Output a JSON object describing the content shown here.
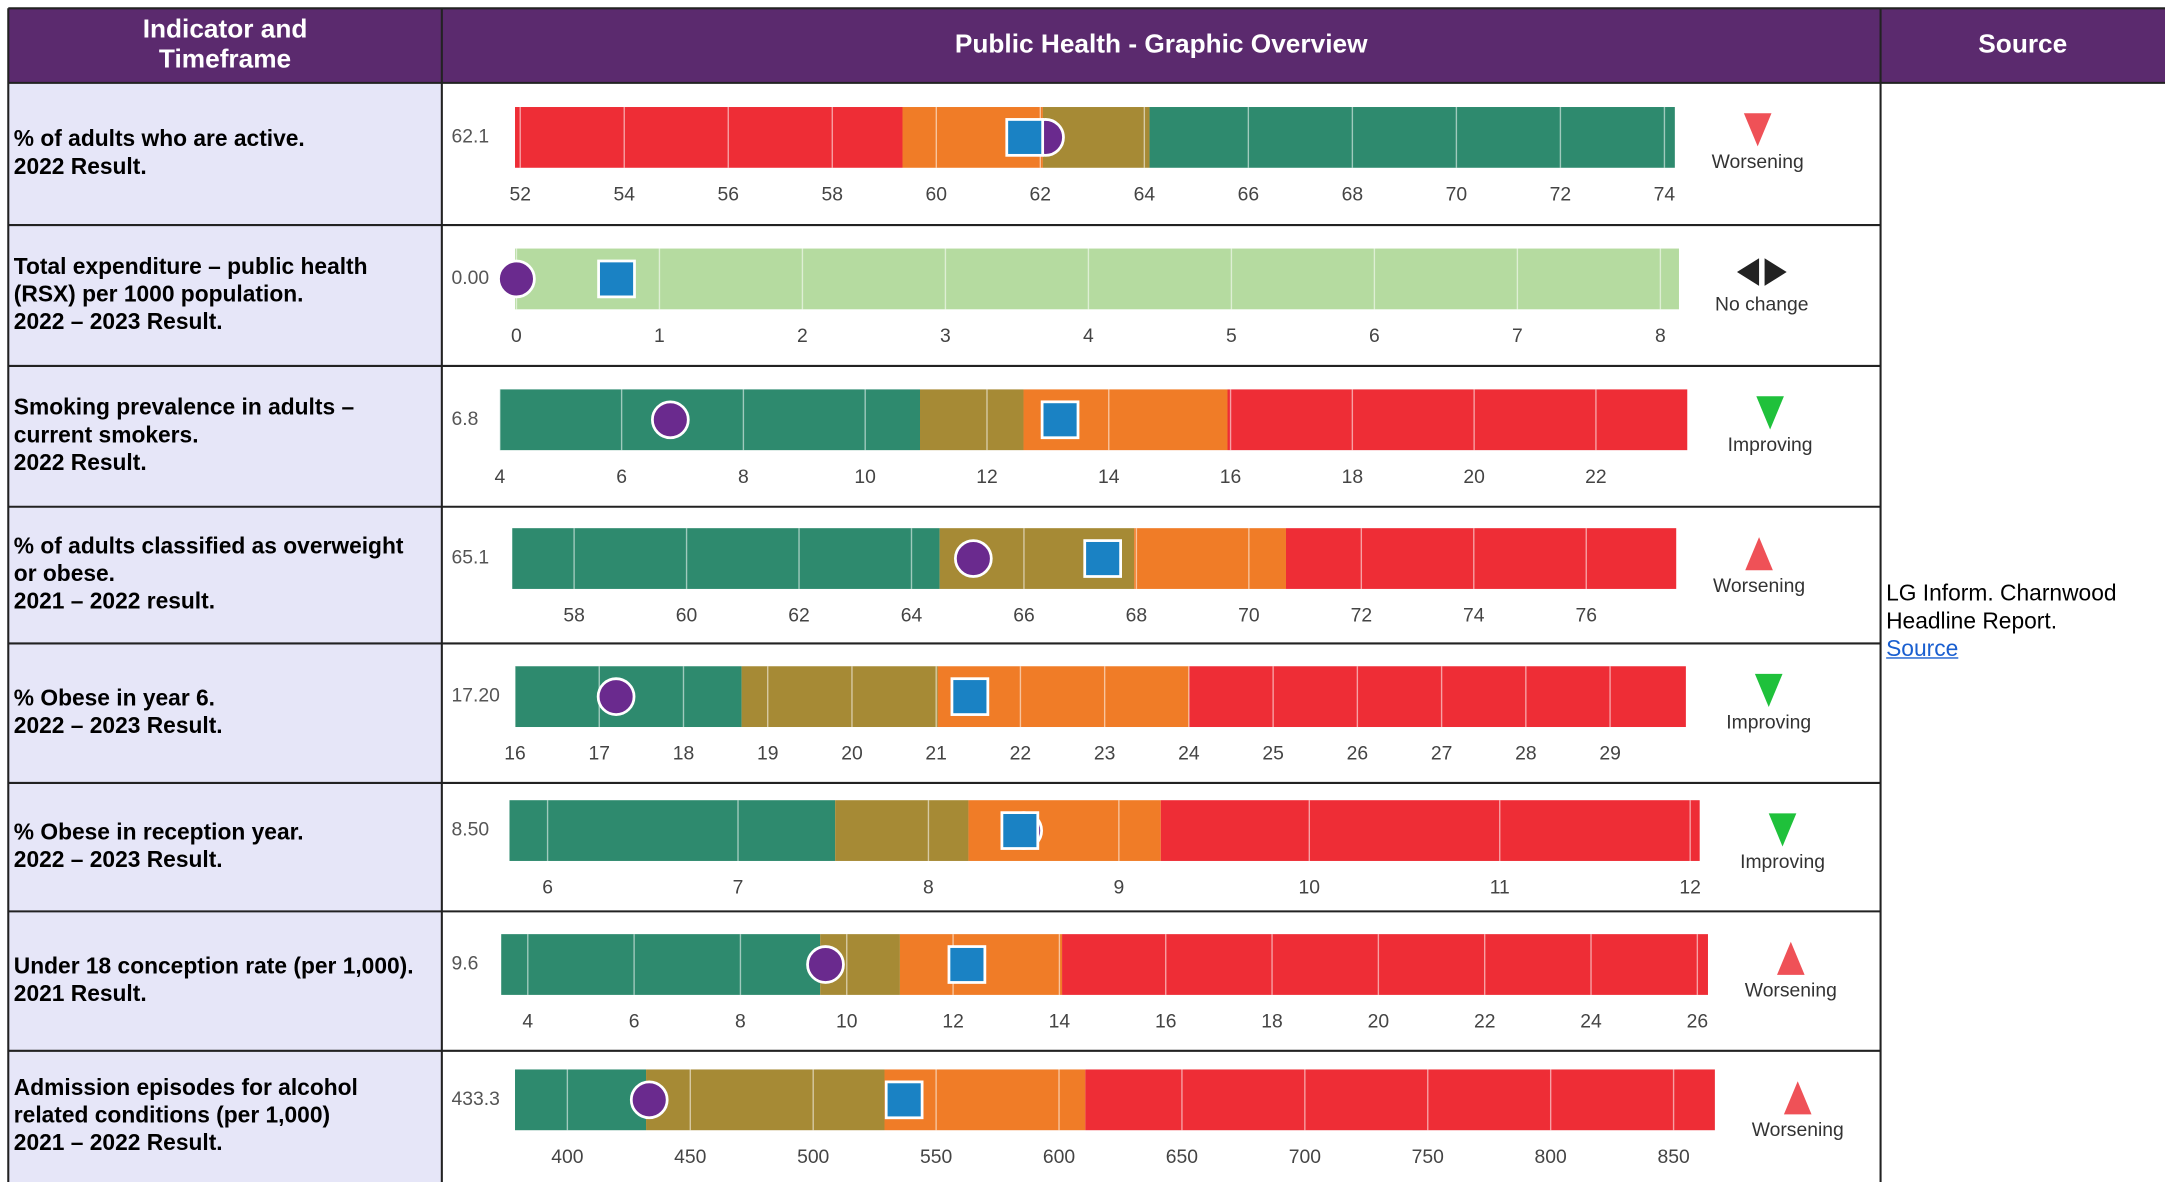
{
  "header": {
    "indicator": "Indicator and Timeframe",
    "overview": "Public Health - Graphic Overview",
    "source": "Source"
  },
  "source": {
    "text": "LG Inform. Charnwood Headline Report.",
    "link": "Source"
  },
  "rows": [
    {
      "name_lines": [
        "% of adults who are active."
      ],
      "timeframe": "2022 Result.",
      "value": 62.1,
      "value_label": "62.1",
      "comparator": 61.7,
      "xlim": [
        51.9,
        74.2
      ],
      "xticks": [
        52,
        54,
        56,
        58,
        60,
        62,
        64,
        66,
        68,
        70,
        72,
        74
      ],
      "band_edges": [
        51.9,
        59.35,
        62.05,
        64.1,
        74.2
      ],
      "band_colors": [
        "#ee2d36",
        "#f07c27",
        "#a68a35",
        "#2e8a6e"
      ],
      "trend": "Worsening",
      "trend_direction": "down",
      "trend_color": "#ef5157"
    },
    {
      "name_lines": [
        "Total expenditure – public health",
        "(RSX) per 1000 population."
      ],
      "timeframe": "2022 – 2023 Result.",
      "value": 0,
      "value_label": "0.00",
      "comparator": 0.7,
      "xlim": [
        -0.01,
        8.13
      ],
      "xticks": [
        0,
        1,
        2,
        3,
        4,
        5,
        6,
        7,
        8
      ],
      "band_edges": [
        -0.01,
        8.13
      ],
      "band_colors": [
        "#b5dba0"
      ],
      "trend": "No change",
      "trend_direction": "none",
      "trend_color": "#222222"
    },
    {
      "name_lines": [
        "Smoking prevalence in adults –",
        "current smokers."
      ],
      "timeframe": "2022 Result.",
      "value": 6.8,
      "value_label": "6.8",
      "comparator": 13.2,
      "xlim": [
        4,
        23.5
      ],
      "xticks": [
        4,
        6,
        8,
        10,
        12,
        14,
        16,
        18,
        20,
        22
      ],
      "band_edges": [
        4,
        10.9,
        12.6,
        15.95,
        23.5
      ],
      "band_colors": [
        "#2e8a6e",
        "#a68a35",
        "#f07c27",
        "#ee2d36"
      ],
      "trend": "Improving",
      "trend_direction": "down",
      "trend_color": "#1fc13b"
    },
    {
      "name_lines": [
        "% of adults classified as overweight",
        "or obese."
      ],
      "timeframe": "2021 – 2022 result.",
      "value": 65.1,
      "value_label": "65.1",
      "comparator": 67.4,
      "xlim": [
        56.9,
        77.6
      ],
      "xticks": [
        58,
        60,
        62,
        64,
        66,
        68,
        70,
        72,
        74,
        76
      ],
      "band_edges": [
        56.9,
        64.5,
        67.96,
        70.66,
        77.6
      ],
      "band_colors": [
        "#2e8a6e",
        "#a68a35",
        "#f07c27",
        "#ee2d36"
      ],
      "trend": "Worsening",
      "trend_direction": "up",
      "trend_color": "#ef5157"
    },
    {
      "name_lines": [
        "% Obese in year 6."
      ],
      "timeframe": "2022 – 2023 Result.",
      "value": 17.2,
      "value_label": "17.20",
      "comparator": 21.4,
      "xlim": [
        16,
        29.9
      ],
      "xticks": [
        16,
        17,
        18,
        19,
        20,
        21,
        22,
        23,
        24,
        25,
        26,
        27,
        28,
        29
      ],
      "band_edges": [
        16,
        18.69,
        21.02,
        24,
        29.9
      ],
      "band_colors": [
        "#2e8a6e",
        "#a68a35",
        "#f07c27",
        "#ee2d36"
      ],
      "trend": "Improving",
      "trend_direction": "down",
      "trend_color": "#1fc13b"
    },
    {
      "name_lines": [
        "% Obese in reception year."
      ],
      "timeframe": "2022 – 2023 Result.",
      "value": 8.5,
      "value_label": "8.50",
      "comparator": 8.48,
      "xlim": [
        5.8,
        12.05
      ],
      "xticks": [
        6,
        7,
        8,
        9,
        10,
        11,
        12
      ],
      "band_edges": [
        5.8,
        7.51,
        8.21,
        9.22,
        12.05
      ],
      "band_colors": [
        "#2e8a6e",
        "#a68a35",
        "#f07c27",
        "#ee2d36"
      ],
      "trend": "Improving",
      "trend_direction": "down",
      "trend_color": "#1fc13b"
    },
    {
      "name_lines": [
        "Under 18 conception rate (per 1,000)."
      ],
      "timeframe": "2021 Result.",
      "value": 9.6,
      "value_label": "9.6",
      "comparator": 12.26,
      "xlim": [
        3.5,
        26.2
      ],
      "xticks": [
        4,
        6,
        8,
        10,
        12,
        14,
        16,
        18,
        20,
        22,
        24,
        26
      ],
      "band_edges": [
        3.5,
        9.5,
        11,
        14.05,
        26.2
      ],
      "band_colors": [
        "#2e8a6e",
        "#a68a35",
        "#f07c27",
        "#ee2d36"
      ],
      "trend": "Worsening",
      "trend_direction": "up",
      "trend_color": "#ef5157"
    },
    {
      "name_lines": [
        "Admission episodes for alcohol",
        "related conditions (per 1,000)"
      ],
      "timeframe": "2021 – 2022 Result.",
      "value": 433.3,
      "value_label": "433.3",
      "comparator": 537,
      "xlim": [
        378.7,
        866.8
      ],
      "xticks": [
        400,
        450,
        500,
        550,
        600,
        650,
        700,
        750,
        800,
        850
      ],
      "band_edges": [
        378.7,
        432,
        529,
        610.7,
        866.8
      ],
      "band_colors": [
        "#2e8a6e",
        "#a68a35",
        "#f07c27",
        "#ee2d36"
      ],
      "trend": "Worsening",
      "trend_direction": "up",
      "trend_color": "#ef5157"
    }
  ]
}
